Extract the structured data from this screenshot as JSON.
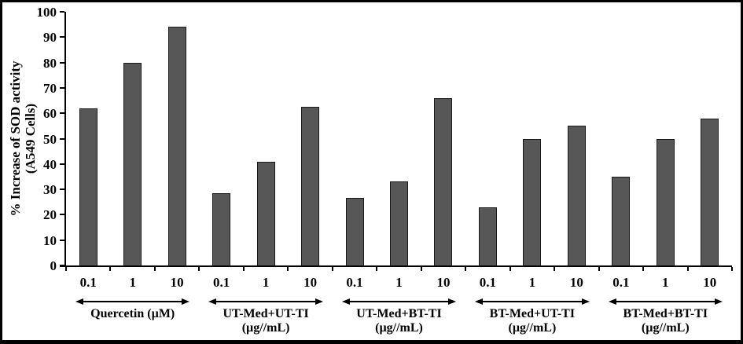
{
  "chart": {
    "ylabel_line1": "% Increase of SOD activity",
    "ylabel_line2": "(A549 Cells)"
  },
  "chart_data": {
    "type": "bar",
    "title": "",
    "ylabel": "% Increase of SOD activity (A549 Cells)",
    "xlabel": "",
    "ylim": [
      0,
      100
    ],
    "yticks": [
      0,
      10,
      20,
      30,
      40,
      50,
      60,
      70,
      80,
      90,
      100
    ],
    "grid": false,
    "legend": "none",
    "bar_color": "#575757",
    "bar_border_color": "#1a1a1a",
    "categories_per_group": [
      "0.1",
      "1",
      "10"
    ],
    "groups": [
      {
        "label_lines": [
          "Quercetin (µM)"
        ],
        "values": [
          62,
          80,
          94
        ]
      },
      {
        "label_lines": [
          "UT-Med+UT-TI",
          "(µg//mL)"
        ],
        "values": [
          28.5,
          41,
          62.5
        ]
      },
      {
        "label_lines": [
          "UT-Med+BT-TI",
          "(µg//mL)"
        ],
        "values": [
          26.5,
          33,
          66
        ]
      },
      {
        "label_lines": [
          "BT-Med+UT-TI",
          "(µg//mL)"
        ],
        "values": [
          23,
          50,
          55
        ]
      },
      {
        "label_lines": [
          "BT-Med+BT-TI",
          "(µg//mL)"
        ],
        "values": [
          35,
          50,
          58
        ]
      }
    ]
  }
}
